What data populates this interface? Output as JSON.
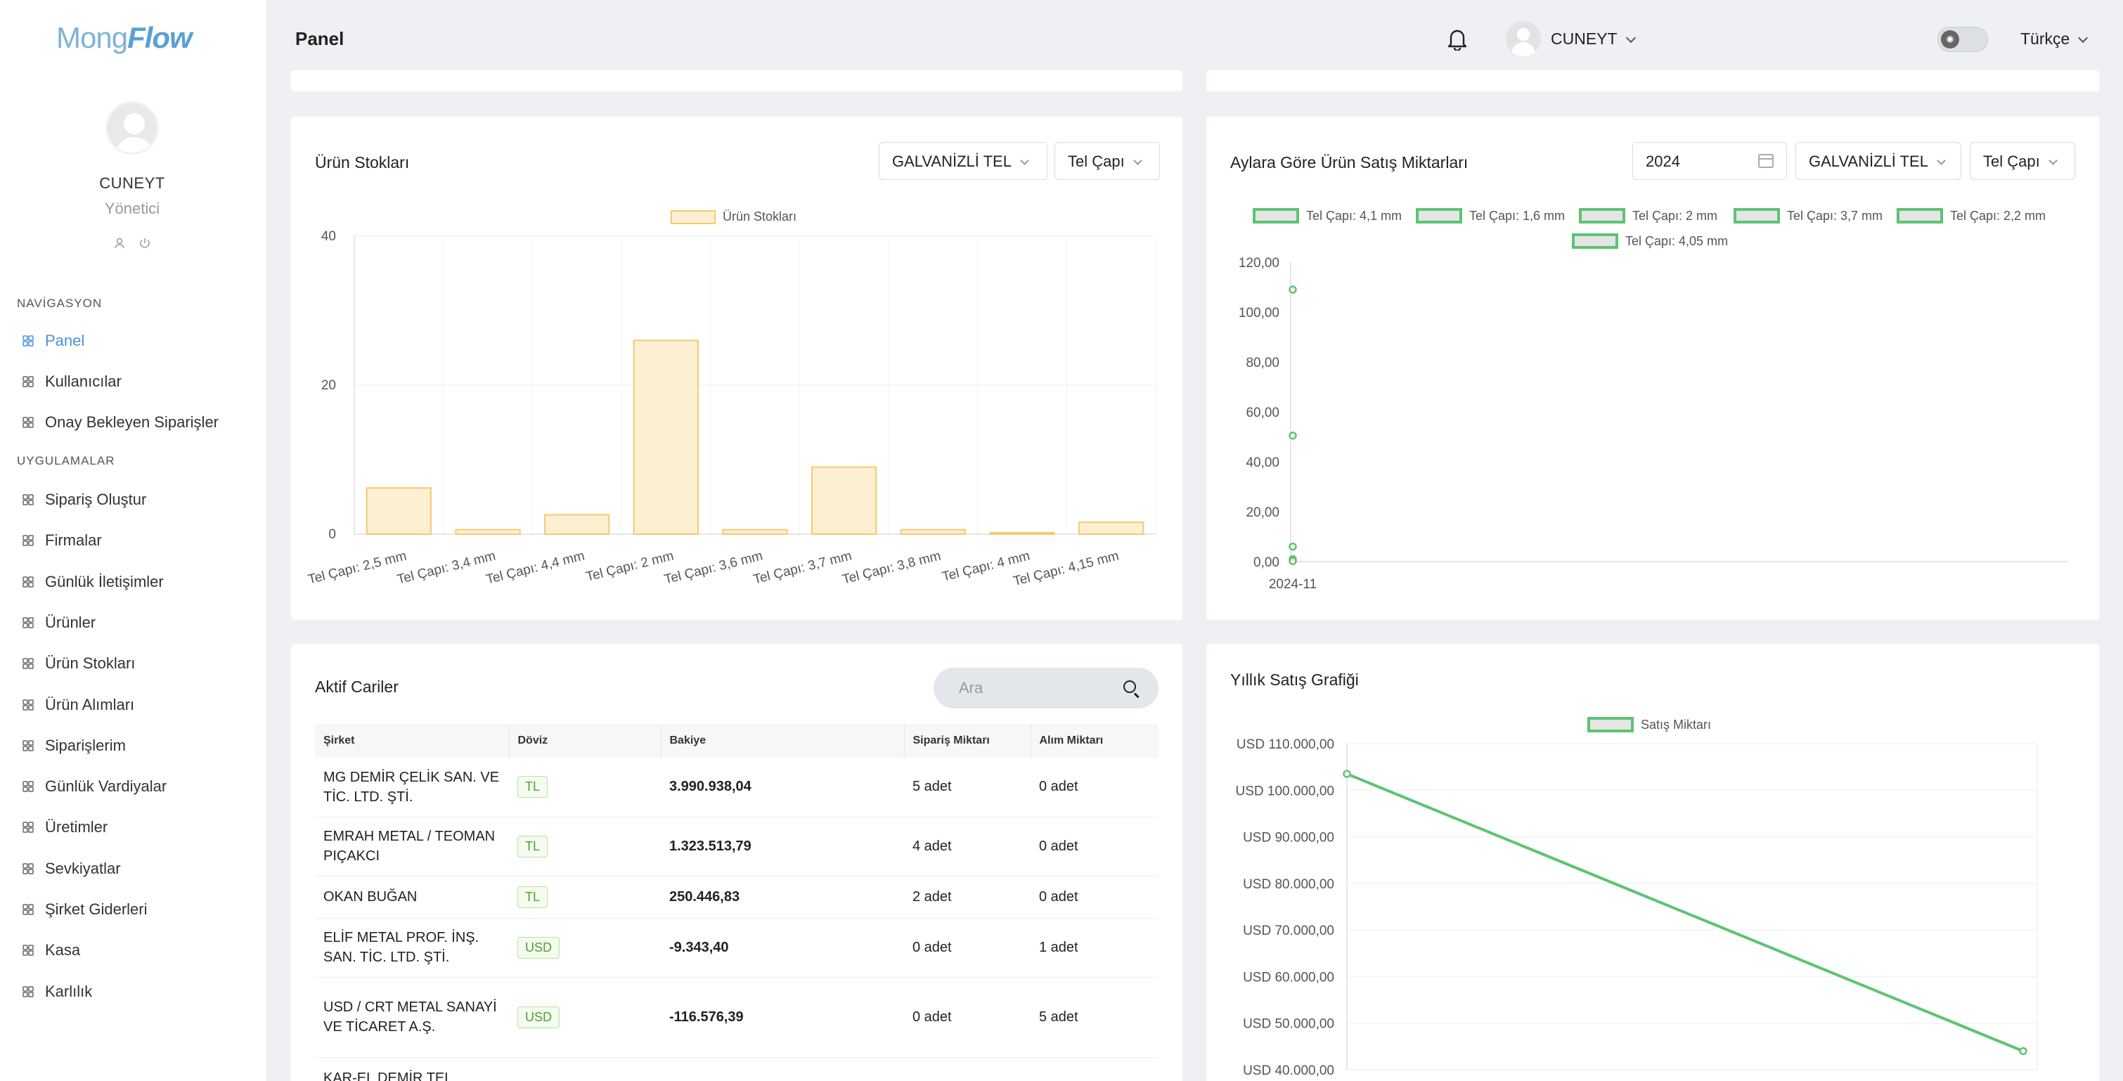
{
  "app": {
    "logo_part1": "Mong",
    "logo_part2": "Flow"
  },
  "header": {
    "title": "Panel",
    "user_name": "CUNEYT",
    "language": "Türkçe"
  },
  "sidebar": {
    "user_name": "CUNEYT",
    "user_role": "Yönetici",
    "section_nav": "NAVİGASYON",
    "section_apps": "UYGULAMALAR",
    "nav_items": [
      {
        "label": "Panel",
        "icon": "grid-icon"
      },
      {
        "label": "Kullanıcılar",
        "icon": "users-icon"
      },
      {
        "label": "Onay Bekleyen Siparişler",
        "icon": "list-icon"
      }
    ],
    "app_items": [
      {
        "label": "Sipariş Oluştur",
        "icon": "list-plus-icon"
      },
      {
        "label": "Firmalar",
        "icon": "building-icon"
      },
      {
        "label": "Günlük İletişimler",
        "icon": "headset-icon"
      },
      {
        "label": "Ürünler",
        "icon": "table-icon"
      },
      {
        "label": "Ürün Stokları",
        "icon": "layers-icon"
      },
      {
        "label": "Ürün Alımları",
        "icon": "basket-icon"
      },
      {
        "label": "Siparişlerim",
        "icon": "checklist-icon"
      },
      {
        "label": "Günlük Vardiyalar",
        "icon": "book-icon"
      },
      {
        "label": "Üretimler",
        "icon": "factory-icon"
      },
      {
        "label": "Sevkiyatlar",
        "icon": "truck-icon"
      },
      {
        "label": "Şirket Giderleri",
        "icon": "dollar-icon"
      },
      {
        "label": "Kasa",
        "icon": "safe-icon"
      },
      {
        "label": "Karlılık",
        "icon": "dollar-icon"
      }
    ]
  },
  "stock_card": {
    "title": "Ürün Stokları",
    "filter_product": "GALVANİZLİ TEL",
    "filter_attr": "Tel Çapı"
  },
  "sales_card": {
    "title": "Aylara Göre Ürün Satış Miktarları",
    "filter_year": "2024",
    "filter_product": "GALVANİZLİ TEL",
    "filter_attr": "Tel Çapı"
  },
  "customers_card": {
    "title": "Aktif Cariler",
    "search_placeholder": "Ara",
    "columns": [
      "Şirket",
      "Döviz",
      "Bakiye",
      "Sipariş Miktarı",
      "Alım Miktarı"
    ],
    "rows": [
      {
        "company": "MG DEMİR ÇELİK SAN. VE TİC. LTD. ŞTİ.",
        "currency": "TL",
        "balance": "3.990.938,04",
        "orders": "5 adet",
        "purchases": "0 adet"
      },
      {
        "company": "EMRAH METAL / TEOMAN PIÇAKCI",
        "currency": "TL",
        "balance": "1.323.513,79",
        "orders": "4 adet",
        "purchases": "0 adet"
      },
      {
        "company": "OKAN BUĞAN",
        "currency": "TL",
        "balance": "250.446,83",
        "orders": "2 adet",
        "purchases": "0 adet"
      },
      {
        "company": "ELİF METAL PROF. İNŞ. SAN. TİC. LTD. ŞTİ.",
        "currency": "USD",
        "balance": "-9.343,40",
        "orders": "0 adet",
        "purchases": "1 adet"
      },
      {
        "company": "USD / CRT METAL SANAYİ VE TİCARET A.Ş.",
        "currency": "USD",
        "balance": "-116.576,39",
        "orders": "0 adet",
        "purchases": "5 adet"
      },
      {
        "company": "KAR-EL DEMİR TEL",
        "currency": "",
        "balance": "",
        "orders": "",
        "purchases": ""
      }
    ]
  },
  "annual_card": {
    "title": "Yıllık Satış Grafiği"
  },
  "colors": {
    "accent": "#4f8fd9",
    "bar_fill": "#fdf0d2",
    "bar_stroke": "#f5c971",
    "line": "#5cc473"
  },
  "chart_data": [
    {
      "type": "bar",
      "title": "",
      "series": [
        {
          "name": "Ürün Stokları",
          "values": [
            6.2,
            0.6,
            2.6,
            26,
            0.6,
            9,
            0.6,
            0.2,
            1.6
          ]
        }
      ],
      "categories": [
        "Tel Çapı: 2,5 mm",
        "Tel Çapı: 3,4 mm",
        "Tel Çapı: 4,4 mm",
        "Tel Çapı: 2 mm",
        "Tel Çapı: 3,6 mm",
        "Tel Çapı: 3,7 mm",
        "Tel Çapı: 3,8 mm",
        "Tel Çapı: 4 mm",
        "Tel Çapı: 4,15 mm"
      ],
      "yticks": [
        "0",
        "20",
        "40"
      ],
      "ylim": [
        0,
        40
      ],
      "legend": "top-center",
      "grid": true
    },
    {
      "type": "line",
      "categories": [
        "2024-11"
      ],
      "series": [
        {
          "name": "Tel Çapı: 4,1 mm",
          "values": [
            109
          ]
        },
        {
          "name": "Tel Çapı: 1,6 mm",
          "values": [
            50.5
          ]
        },
        {
          "name": "Tel Çapı: 2 mm",
          "values": [
            6
          ]
        },
        {
          "name": "Tel Çapı: 3,7 mm",
          "values": [
            1
          ]
        },
        {
          "name": "Tel Çapı: 2,2 mm",
          "values": [
            0.5
          ]
        },
        {
          "name": "Tel Çapı: 4,05 mm",
          "values": [
            0.2
          ]
        }
      ],
      "yticks": [
        "0,00",
        "20,00",
        "40,00",
        "60,00",
        "80,00",
        "100,00",
        "120,00"
      ],
      "ylim": [
        0,
        120
      ],
      "legend": "top-center",
      "grid": false
    },
    {
      "type": "line",
      "series": [
        {
          "name": "Satış Miktarı",
          "values": [
            103500,
            44000
          ]
        }
      ],
      "yticks": [
        "USD 40.000,00",
        "USD 50.000,00",
        "USD 60.000,00",
        "USD 70.000,00",
        "USD 80.000,00",
        "USD 90.000,00",
        "USD 100.000,00",
        "USD 110.000,00"
      ],
      "ylim": [
        40000,
        110000
      ],
      "legend": "top-center",
      "grid": true
    }
  ]
}
